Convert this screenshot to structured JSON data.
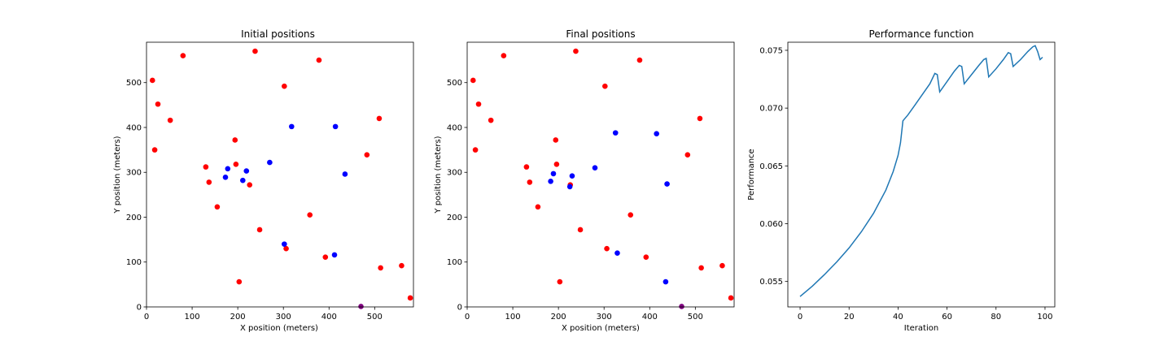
{
  "chart_data": [
    {
      "type": "scatter",
      "title": "Initial positions",
      "xlabel": "X position (meters)",
      "ylabel": "Y position (meters)",
      "xlim": [
        0,
        585
      ],
      "ylim": [
        0,
        590
      ],
      "xticks": [
        0,
        100,
        200,
        300,
        400,
        500
      ],
      "yticks": [
        0,
        100,
        200,
        300,
        400,
        500
      ],
      "grid": false,
      "series": [
        {
          "color": "#ff0000",
          "points": [
            [
              80,
              560
            ],
            [
              238,
              570
            ],
            [
              378,
              550
            ],
            [
              13,
              505
            ],
            [
              25,
              452
            ],
            [
              302,
              492
            ],
            [
              52,
              416
            ],
            [
              510,
              420
            ],
            [
              194,
              372
            ],
            [
              18,
              350
            ],
            [
              483,
              339
            ],
            [
              130,
              312
            ],
            [
              196,
              318
            ],
            [
              137,
              278
            ],
            [
              226,
              272
            ],
            [
              155,
              223
            ],
            [
              358,
              205
            ],
            [
              248,
              172
            ],
            [
              306,
              130
            ],
            [
              392,
              111
            ],
            [
              513,
              87
            ],
            [
              559,
              92
            ],
            [
              203,
              56
            ],
            [
              578,
              20
            ]
          ]
        },
        {
          "color": "#0000ff",
          "points": [
            [
              318,
              402
            ],
            [
              414,
              402
            ],
            [
              270,
              322
            ],
            [
              435,
              296
            ],
            [
              178,
              308
            ],
            [
              219,
              303
            ],
            [
              173,
              289
            ],
            [
              211,
              282
            ],
            [
              302,
              140
            ],
            [
              412,
              116
            ]
          ]
        },
        {
          "color": "#800080",
          "points": [
            [
              470,
              1
            ]
          ]
        }
      ]
    },
    {
      "type": "scatter",
      "title": "Final positions",
      "xlabel": "X position (meters)",
      "ylabel": "Y position (meters)",
      "xlim": [
        0,
        585
      ],
      "ylim": [
        0,
        590
      ],
      "xticks": [
        0,
        100,
        200,
        300,
        400,
        500
      ],
      "yticks": [
        0,
        100,
        200,
        300,
        400,
        500
      ],
      "grid": false,
      "series": [
        {
          "color": "#ff0000",
          "points": [
            [
              80,
              560
            ],
            [
              238,
              570
            ],
            [
              378,
              550
            ],
            [
              13,
              505
            ],
            [
              25,
              452
            ],
            [
              302,
              492
            ],
            [
              52,
              416
            ],
            [
              510,
              420
            ],
            [
              194,
              372
            ],
            [
              18,
              350
            ],
            [
              483,
              339
            ],
            [
              130,
              312
            ],
            [
              196,
              318
            ],
            [
              137,
              278
            ],
            [
              226,
              272
            ],
            [
              155,
              223
            ],
            [
              358,
              205
            ],
            [
              248,
              172
            ],
            [
              306,
              130
            ],
            [
              392,
              111
            ],
            [
              513,
              87
            ],
            [
              559,
              92
            ],
            [
              203,
              56
            ],
            [
              578,
              20
            ]
          ]
        },
        {
          "color": "#0000ff",
          "points": [
            [
              325,
              388
            ],
            [
              415,
              386
            ],
            [
              280,
              310
            ],
            [
              189,
              297
            ],
            [
              230,
              292
            ],
            [
              183,
              280
            ],
            [
              225,
              268
            ],
            [
              438,
              274
            ],
            [
              329,
              120
            ],
            [
              435,
              56
            ]
          ]
        },
        {
          "color": "#800080",
          "points": [
            [
              470,
              1
            ]
          ]
        }
      ]
    },
    {
      "type": "line",
      "title": "Performance function",
      "xlabel": "Iteration",
      "ylabel": "Performance",
      "xlim": [
        -5,
        104
      ],
      "ylim": [
        0.0528,
        0.0757
      ],
      "xticks": [
        0,
        20,
        40,
        60,
        80,
        100
      ],
      "yticks": [
        0.055,
        0.06,
        0.065,
        0.07,
        0.075
      ],
      "ytick_labels": [
        "0.055",
        "0.060",
        "0.065",
        "0.070",
        "0.075"
      ],
      "grid": false,
      "series": [
        {
          "color": "#1f77b4",
          "x": [
            0,
            5,
            10,
            15,
            20,
            25,
            30,
            35,
            38,
            40,
            41,
            42,
            44,
            47,
            50,
            53,
            55,
            56,
            57,
            60,
            63,
            65,
            66,
            67,
            70,
            73,
            75,
            76,
            77,
            80,
            83,
            85,
            86,
            87,
            90,
            93,
            95,
            96,
            97,
            98,
            99
          ],
          "y": [
            0.0537,
            0.0546,
            0.0556,
            0.0567,
            0.0579,
            0.0593,
            0.0609,
            0.0629,
            0.0645,
            0.0659,
            0.067,
            0.0689,
            0.0694,
            0.0703,
            0.0712,
            0.0721,
            0.073,
            0.0729,
            0.0714,
            0.0723,
            0.0732,
            0.0737,
            0.0736,
            0.0721,
            0.0729,
            0.0737,
            0.0742,
            0.0743,
            0.0727,
            0.0734,
            0.0742,
            0.0748,
            0.0747,
            0.0736,
            0.0742,
            0.0749,
            0.0753,
            0.0754,
            0.0749,
            0.0742,
            0.0744
          ]
        }
      ]
    }
  ]
}
